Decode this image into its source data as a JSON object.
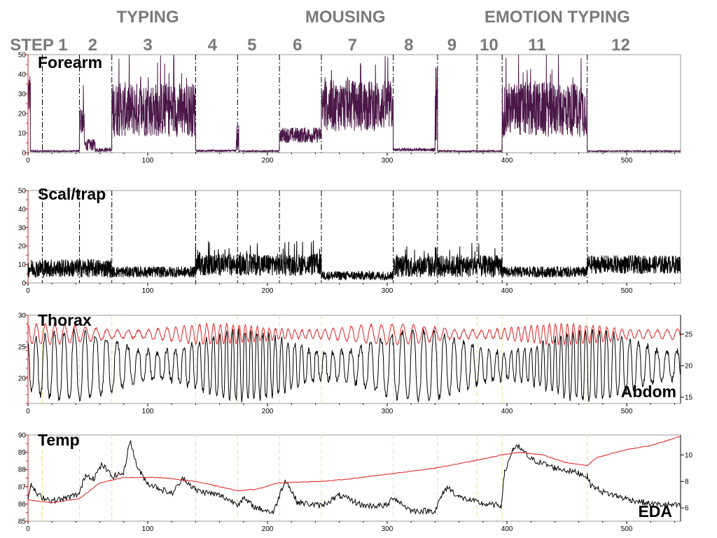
{
  "phases": [
    {
      "label": "TYPING",
      "x": 100
    },
    {
      "label": "MOUSING",
      "x": 265
    },
    {
      "label": "EMOTION TYPING",
      "x": 442
    }
  ],
  "steps": [
    {
      "label": "STEP 1",
      "x": 9
    },
    {
      "label": "2",
      "x": 54
    },
    {
      "label": "3",
      "x": 100
    },
    {
      "label": "4",
      "x": 154
    },
    {
      "label": "5",
      "x": 187
    },
    {
      "label": "6",
      "x": 225
    },
    {
      "label": "7",
      "x": 271
    },
    {
      "label": "8",
      "x": 318
    },
    {
      "label": "9",
      "x": 354
    },
    {
      "label": "10",
      "x": 385
    },
    {
      "label": "11",
      "x": 425
    },
    {
      "label": "12",
      "x": 495
    }
  ],
  "chart_data": [
    {
      "type": "line",
      "panel": "forearm",
      "label": "Forearm",
      "x_range": [
        0,
        545
      ],
      "x_ticks": [
        0,
        100,
        200,
        300,
        400,
        500
      ],
      "y_left": {
        "range": [
          0,
          50
        ],
        "ticks": [
          0,
          10,
          20,
          30,
          40,
          50
        ]
      },
      "marker_style": "dashed-black",
      "markers": [
        12,
        43,
        70,
        140,
        175,
        210,
        245,
        305,
        342,
        375,
        396,
        467
      ],
      "segments": [
        {
          "from": 0,
          "to": 2,
          "base": 30,
          "amp": 12
        },
        {
          "from": 2,
          "to": 43,
          "base": 0.8,
          "amp": 0.4
        },
        {
          "from": 43,
          "to": 47,
          "base": 17,
          "amp": 8
        },
        {
          "from": 47,
          "to": 56,
          "base": 4,
          "amp": 3
        },
        {
          "from": 56,
          "to": 70,
          "base": 1.5,
          "amp": 1
        },
        {
          "from": 70,
          "to": 140,
          "base": 22,
          "amp": 14
        },
        {
          "from": 140,
          "to": 174,
          "base": 1,
          "amp": 0.5
        },
        {
          "from": 174,
          "to": 176,
          "base": 8,
          "amp": 6
        },
        {
          "from": 176,
          "to": 210,
          "base": 0.8,
          "amp": 0.4
        },
        {
          "from": 210,
          "to": 245,
          "base": 9,
          "amp": 4
        },
        {
          "from": 245,
          "to": 305,
          "base": 24,
          "amp": 13
        },
        {
          "from": 305,
          "to": 340,
          "base": 1.5,
          "amp": 0.8
        },
        {
          "from": 340,
          "to": 342,
          "base": 25,
          "amp": 20
        },
        {
          "from": 342,
          "to": 396,
          "base": 0.8,
          "amp": 0.4
        },
        {
          "from": 396,
          "to": 467,
          "base": 22,
          "amp": 14
        },
        {
          "from": 467,
          "to": 545,
          "base": 0.8,
          "amp": 0.3
        }
      ],
      "series": [
        {
          "color": "#4b1748"
        }
      ]
    },
    {
      "type": "line",
      "panel": "scal-trap",
      "label": "Scal/trap",
      "x_range": [
        0,
        545
      ],
      "x_ticks": [
        0,
        100,
        200,
        300,
        400,
        500
      ],
      "y_left": {
        "range": [
          0,
          50
        ],
        "ticks": [
          0,
          10,
          20,
          30,
          40,
          50
        ]
      },
      "marker_style": "dashed-black",
      "markers": [
        12,
        43,
        70,
        140,
        175,
        210,
        245,
        305,
        342,
        375,
        396,
        467
      ],
      "segments": [
        {
          "from": 0,
          "to": 70,
          "base": 8,
          "amp": 5
        },
        {
          "from": 70,
          "to": 140,
          "base": 6,
          "amp": 3
        },
        {
          "from": 140,
          "to": 245,
          "base": 10,
          "amp": 6
        },
        {
          "from": 245,
          "to": 305,
          "base": 4,
          "amp": 2.5
        },
        {
          "from": 305,
          "to": 396,
          "base": 9,
          "amp": 6
        },
        {
          "from": 396,
          "to": 467,
          "base": 6,
          "amp": 3
        },
        {
          "from": 467,
          "to": 545,
          "base": 10,
          "amp": 5
        }
      ],
      "series": [
        {
          "color": "#000000"
        }
      ]
    },
    {
      "type": "line",
      "panel": "thorax-abdom",
      "label": "Thorax",
      "label2": "Abdom",
      "x_range": [
        0,
        545
      ],
      "x_ticks": [
        0,
        100,
        200,
        300,
        400,
        500
      ],
      "y_left": {
        "range": [
          16,
          30
        ],
        "ticks": [
          20,
          25,
          30
        ]
      },
      "y_right": {
        "range": [
          14,
          28
        ],
        "ticks": [
          15,
          20,
          25
        ]
      },
      "marker_style": "dashed-yellow",
      "markers": [
        12,
        43,
        70,
        140,
        175,
        210,
        245,
        305,
        342,
        375,
        396,
        467
      ],
      "series": [
        {
          "color": "#000000",
          "axis": "left",
          "mid": 22,
          "amp": 5.5
        },
        {
          "color": "#e02020",
          "axis": "right",
          "mid": 25,
          "amp": 1.6
        }
      ]
    },
    {
      "type": "line",
      "panel": "temp-eda",
      "label": "Temp",
      "label2": "EDA",
      "x_range": [
        0,
        545
      ],
      "x_ticks": [
        0,
        100,
        200,
        300,
        400,
        500
      ],
      "y_left": {
        "range": [
          85,
          90
        ],
        "ticks": [
          85,
          86,
          87,
          88,
          89,
          90
        ]
      },
      "y_right": {
        "range": [
          5,
          11.5
        ],
        "ticks": [
          6,
          8,
          10
        ]
      },
      "marker_style": "dashed-yellow",
      "markers": [
        12,
        43,
        70,
        140,
        175,
        210,
        245,
        305,
        342,
        375,
        396,
        467
      ],
      "series": [
        {
          "color": "#000000",
          "axis": "left",
          "points": [
            [
              0,
              86.4
            ],
            [
              3,
              87.1
            ],
            [
              8,
              86.5
            ],
            [
              20,
              86.2
            ],
            [
              30,
              86.3
            ],
            [
              43,
              86.6
            ],
            [
              48,
              87.7
            ],
            [
              55,
              87.5
            ],
            [
              62,
              88.3
            ],
            [
              70,
              87.6
            ],
            [
              80,
              87.8
            ],
            [
              85,
              89.7
            ],
            [
              92,
              88.0
            ],
            [
              100,
              87.2
            ],
            [
              120,
              86.6
            ],
            [
              130,
              87.5
            ],
            [
              140,
              86.8
            ],
            [
              160,
              86.5
            ],
            [
              175,
              86.0
            ],
            [
              180,
              86.3
            ],
            [
              190,
              85.8
            ],
            [
              205,
              85.5
            ],
            [
              212,
              86.9
            ],
            [
              215,
              87.4
            ],
            [
              225,
              86.1
            ],
            [
              245,
              85.9
            ],
            [
              260,
              86.5
            ],
            [
              280,
              85.9
            ],
            [
              300,
              85.9
            ],
            [
              305,
              86.4
            ],
            [
              320,
              85.6
            ],
            [
              340,
              85.6
            ],
            [
              345,
              86.4
            ],
            [
              350,
              87.0
            ],
            [
              360,
              86.4
            ],
            [
              380,
              86.0
            ],
            [
              395,
              85.9
            ],
            [
              398,
              87.8
            ],
            [
              405,
              89.2
            ],
            [
              410,
              89.3
            ],
            [
              420,
              88.6
            ],
            [
              440,
              88.1
            ],
            [
              460,
              87.8
            ],
            [
              467,
              87.6
            ],
            [
              470,
              87.1
            ],
            [
              480,
              86.7
            ],
            [
              500,
              86.3
            ],
            [
              520,
              86.0
            ],
            [
              545,
              85.9
            ]
          ]
        },
        {
          "color": "#e02020",
          "axis": "right",
          "points": [
            [
              0,
              6.6
            ],
            [
              20,
              6.4
            ],
            [
              43,
              6.7
            ],
            [
              60,
              7.9
            ],
            [
              80,
              8.3
            ],
            [
              110,
              8.3
            ],
            [
              140,
              8.0
            ],
            [
              175,
              7.3
            ],
            [
              190,
              7.4
            ],
            [
              210,
              7.9
            ],
            [
              245,
              8.0
            ],
            [
              270,
              8.2
            ],
            [
              305,
              8.6
            ],
            [
              340,
              9.0
            ],
            [
              375,
              9.6
            ],
            [
              396,
              10.0
            ],
            [
              410,
              10.2
            ],
            [
              430,
              10.0
            ],
            [
              450,
              9.4
            ],
            [
              467,
              9.2
            ],
            [
              475,
              9.8
            ],
            [
              500,
              10.4
            ],
            [
              520,
              10.7
            ],
            [
              545,
              11.4
            ]
          ]
        }
      ]
    }
  ]
}
